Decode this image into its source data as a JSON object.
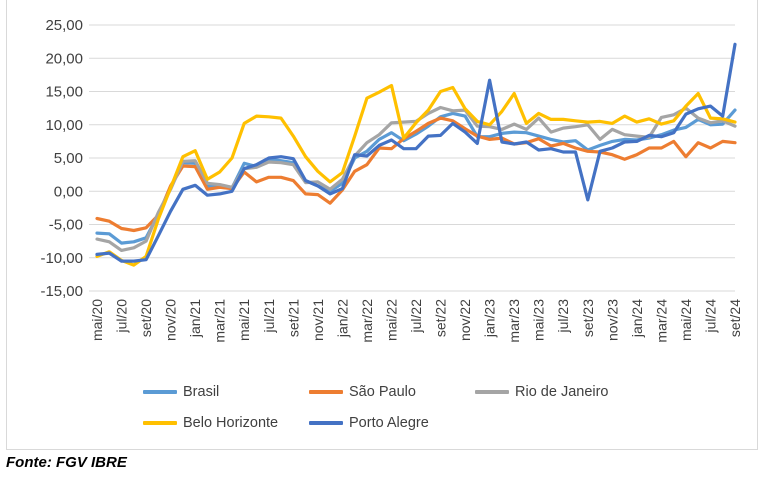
{
  "source_label": "Fonte: FGV IBRE",
  "chart_data": {
    "type": "line",
    "ylim": [
      -15,
      25
    ],
    "yticks": [
      "-15,00",
      "-10,00",
      "-5,00",
      "0,00",
      "5,00",
      "10,00",
      "15,00",
      "20,00",
      "25,00"
    ],
    "ytick_values": [
      -15,
      -10,
      -5,
      0,
      5,
      10,
      15,
      20,
      25
    ],
    "grid": true,
    "legend_position": "bottom",
    "x_tick_labels": [
      "mai/20",
      "jul/20",
      "set/20",
      "nov/20",
      "jan/21",
      "mar/21",
      "mai/21",
      "jul/21",
      "set/21",
      "nov/21",
      "jan/22",
      "mar/22",
      "mai/22",
      "jul/22",
      "set/22",
      "nov/22",
      "jan/23",
      "mar/23",
      "mai/23",
      "jul/23",
      "set/23",
      "nov/23",
      "jan/24",
      "mar/24",
      "mai/24",
      "jul/24",
      "set/24"
    ],
    "x": [
      "mai/20",
      "jun/20",
      "jul/20",
      "ago/20",
      "set/20",
      "out/20",
      "nov/20",
      "dez/20",
      "jan/21",
      "fev/21",
      "mar/21",
      "abr/21",
      "mai/21",
      "jun/21",
      "jul/21",
      "ago/21",
      "set/21",
      "out/21",
      "nov/21",
      "dez/21",
      "jan/22",
      "fev/22",
      "mar/22",
      "abr/22",
      "mai/22",
      "jun/22",
      "jul/22",
      "ago/22",
      "set/22",
      "out/22",
      "nov/22",
      "dez/22",
      "jan/23",
      "fev/23",
      "mar/23",
      "abr/23",
      "mai/23",
      "jun/23",
      "jul/23",
      "ago/23",
      "set/23",
      "out/23",
      "nov/23",
      "dez/23",
      "jan/24",
      "fev/24",
      "mar/24",
      "abr/24",
      "mai/24",
      "jun/24",
      "jul/24",
      "ago/24",
      "set/24"
    ],
    "series": [
      {
        "name": "Brasil",
        "color": "#5b9bd5",
        "values": [
          -6.3,
          -6.4,
          -7.8,
          -7.6,
          -7.0,
          -3.5,
          0.5,
          4.3,
          4.2,
          0.8,
          0.6,
          0.5,
          4.2,
          3.7,
          4.8,
          4.6,
          4.3,
          1.6,
          0.8,
          0.0,
          1.2,
          5.0,
          6.0,
          7.8,
          8.8,
          7.6,
          8.6,
          9.8,
          11.2,
          11.7,
          11.3,
          8.2,
          8.2,
          8.7,
          8.9,
          8.8,
          8.3,
          7.8,
          7.4,
          7.6,
          6.2,
          6.9,
          7.5,
          7.8,
          7.7,
          8.0,
          8.5,
          9.2,
          9.6,
          10.8,
          10.0,
          10.1,
          12.2
        ]
      },
      {
        "name": "São Paulo",
        "color": "#ed7d31",
        "values": [
          -4.1,
          -4.5,
          -5.6,
          -5.9,
          -5.5,
          -3.6,
          0.8,
          3.8,
          3.7,
          0.3,
          0.6,
          0.4,
          2.9,
          1.4,
          2.1,
          2.1,
          1.6,
          -0.4,
          -0.5,
          -1.8,
          0.2,
          3.0,
          4.0,
          6.5,
          6.4,
          7.9,
          9.0,
          10.2,
          11.0,
          10.6,
          9.4,
          8.3,
          7.8,
          8.0,
          7.1,
          7.3,
          7.9,
          6.8,
          7.2,
          6.5,
          6.0,
          5.9,
          5.5,
          4.8,
          5.5,
          6.5,
          6.5,
          7.5,
          5.2,
          7.3,
          6.5,
          7.5,
          7.3
        ]
      },
      {
        "name": "Rio de Janeiro",
        "color": "#a5a5a5",
        "values": [
          -7.2,
          -7.6,
          -8.9,
          -8.5,
          -7.5,
          -3.2,
          0.3,
          4.5,
          4.6,
          1.2,
          1.0,
          0.6,
          3.4,
          3.6,
          4.4,
          4.3,
          4.0,
          1.3,
          1.4,
          0.3,
          1.8,
          5.3,
          7.3,
          8.5,
          10.3,
          10.4,
          10.5,
          11.7,
          12.6,
          12.1,
          12.2,
          9.8,
          9.7,
          9.3,
          10.1,
          9.3,
          11.0,
          8.9,
          9.5,
          9.7,
          10.0,
          7.8,
          9.3,
          8.5,
          8.3,
          8.1,
          11.1,
          11.5,
          12.5,
          11.0,
          10.3,
          10.6,
          9.8
        ]
      },
      {
        "name": "Belo Horizonte",
        "color": "#ffc000",
        "values": [
          -9.8,
          -9.1,
          -10.4,
          -11.1,
          -9.8,
          -4.2,
          0.5,
          5.2,
          6.1,
          1.8,
          2.9,
          5.0,
          10.2,
          11.3,
          11.2,
          11.0,
          8.3,
          5.2,
          3.0,
          1.4,
          2.8,
          8.3,
          14.0,
          14.9,
          15.9,
          8.0,
          10.3,
          12.2,
          15.0,
          15.6,
          12.4,
          10.5,
          10.0,
          12.0,
          14.7,
          10.2,
          11.7,
          10.8,
          10.8,
          10.6,
          10.4,
          10.5,
          10.2,
          11.3,
          10.4,
          10.9,
          10.1,
          10.6,
          12.8,
          14.7,
          11.0,
          10.9,
          10.4
        ]
      },
      {
        "name": "Porto Alegre",
        "color": "#4472c4",
        "values": [
          -9.5,
          -9.3,
          -10.5,
          -10.5,
          -10.3,
          -6.7,
          -3.0,
          0.3,
          0.9,
          -0.6,
          -0.4,
          0.0,
          3.4,
          4.0,
          5.0,
          5.2,
          4.9,
          1.6,
          0.8,
          -0.4,
          0.4,
          5.5,
          5.3,
          6.9,
          7.7,
          6.4,
          6.4,
          8.3,
          8.4,
          10.2,
          8.9,
          7.2,
          16.7,
          7.4,
          7.1,
          7.4,
          6.2,
          6.4,
          5.9,
          5.9,
          -1.3,
          6.0,
          6.5,
          7.4,
          7.5,
          8.4,
          8.2,
          8.8,
          11.6,
          12.4,
          12.8,
          11.3,
          22.1
        ]
      }
    ]
  }
}
